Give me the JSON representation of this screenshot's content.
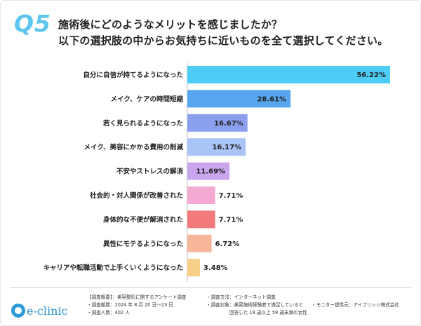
{
  "question": {
    "badge": "Q5",
    "line1": "施術後にどのようなメリットを感じましたか？",
    "line2": "以下の選択肢の中からお気持ちに近いものを全て選択してください。"
  },
  "chart_data": {
    "type": "bar",
    "orientation": "horizontal",
    "categories": [
      "自分に自信が持てるようになった",
      "メイク、ケアの時間短縮",
      "若く見られるようになった",
      "メイク、美容にかかる費用の削減",
      "不安やストレスの解消",
      "社会的・対人関係が改善された",
      "身体的な不便が解消された",
      "異性にモテるようになった",
      "キャリアや転職活動で上手くいくようになった"
    ],
    "values": [
      56.22,
      28.61,
      16.67,
      16.17,
      11.69,
      7.71,
      7.71,
      6.72,
      3.48
    ],
    "value_labels": [
      "56.22%",
      "28.61%",
      "16.67%",
      "16.17%",
      "11.69%",
      "7.71%",
      "7.71%",
      "6.72%",
      "3.48%"
    ],
    "colors": [
      "#4dcdf5",
      "#58a6ef",
      "#8aa0ee",
      "#a9c4f6",
      "#c9a6ee",
      "#f3a9d2",
      "#f27a7a",
      "#f7b59a",
      "#f8cf86"
    ],
    "xlim": [
      0,
      56.22
    ],
    "grid": false,
    "legend": "none"
  },
  "footer": {
    "logo_text": "e-clinic",
    "overview": "【調査概要】：美容整形に関するアンケート調査",
    "period": "・調査期間：2024 年 8 月 20 日～23 日",
    "count": "・調査人数：402 人",
    "method": "・調査方法：インターネット調査",
    "target_line1": "・調査対象：美容施術経験者で満足していると",
    "target_line2": "回答した 18 歳以上 59 歳未満の女性",
    "provider": "・モニター提供元：アイブリッジ株式会社"
  }
}
